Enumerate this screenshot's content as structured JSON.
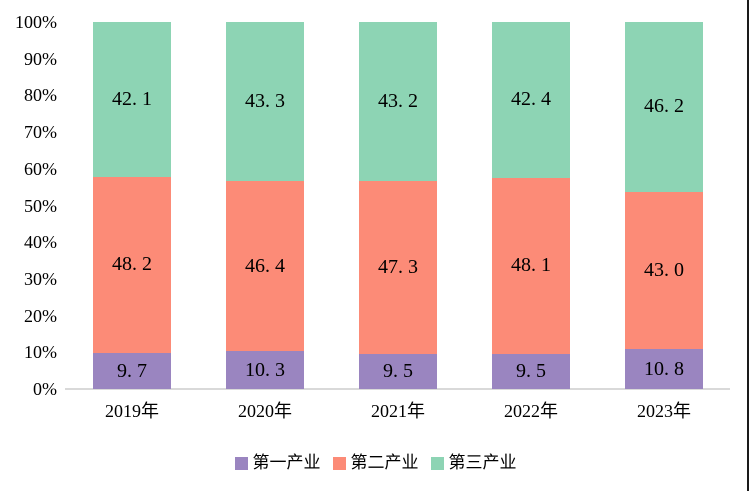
{
  "chart_data": {
    "type": "bar",
    "stacked": true,
    "percent_stacked": true,
    "title": "",
    "xlabel": "",
    "ylabel": "",
    "grid": false,
    "legend_position": "bottom",
    "categories": [
      "2019年",
      "2020年",
      "2021年",
      "2022年",
      "2023年"
    ],
    "series": [
      {
        "name": "第一产业",
        "color": "#9a85c0",
        "values": [
          9.7,
          10.3,
          9.5,
          9.5,
          10.8
        ],
        "labels": [
          "9. 7",
          "10. 3",
          "9. 5",
          "9. 5",
          "10. 8"
        ]
      },
      {
        "name": "第二产业",
        "color": "#fc8b77",
        "values": [
          48.2,
          46.4,
          47.3,
          48.1,
          43.0
        ],
        "labels": [
          "48. 2",
          "46. 4",
          "47. 3",
          "48. 1",
          "43. 0"
        ]
      },
      {
        "name": "第三产业",
        "color": "#8dd4b4",
        "values": [
          42.1,
          43.3,
          43.2,
          42.4,
          46.2
        ],
        "labels": [
          "42. 1",
          "43. 3",
          "43. 2",
          "42. 4",
          "46. 2"
        ]
      }
    ],
    "y_axis": {
      "min": 0,
      "max": 100,
      "tick_step": 10,
      "tick_labels": [
        "0%",
        "10%",
        "20%",
        "30%",
        "40%",
        "50%",
        "60%",
        "70%",
        "80%",
        "90%",
        "100%"
      ]
    },
    "legend": [
      "第一产业",
      "第二产业",
      "第三产业"
    ]
  },
  "colors": {
    "series_1": "#9a85c0",
    "series_2": "#fc8b77",
    "series_3": "#8dd4b4",
    "axis_line": "#d9d9d9",
    "frame_right_border": "#1a1a1a",
    "background": "#ffffff",
    "text": "#000000"
  },
  "layout_values": {
    "bar_lefts": [
      93,
      226,
      359,
      492,
      625
    ],
    "bar_centers": [
      132,
      265,
      398,
      531,
      664
    ]
  }
}
